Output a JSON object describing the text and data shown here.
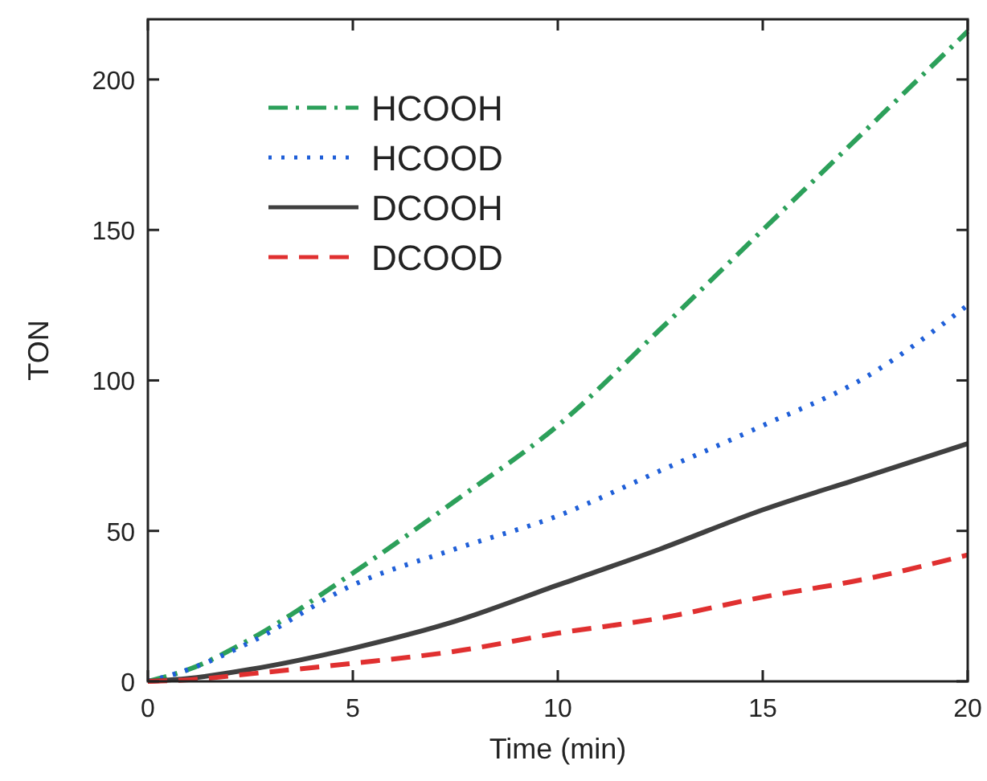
{
  "chart_data": {
    "type": "line",
    "xlabel": "Time (min)",
    "ylabel": "TON",
    "x": [
      0,
      1,
      2.5,
      5,
      7.5,
      10,
      12.5,
      15,
      17.5,
      20
    ],
    "xlim": [
      0,
      20
    ],
    "ylim": [
      0,
      220
    ],
    "xticks": [
      0,
      5,
      10,
      15,
      20
    ],
    "yticks": [
      0,
      50,
      100,
      150,
      200
    ],
    "legend": "top left",
    "grid": false,
    "series": [
      {
        "name": "HCOOH",
        "color": "#2ca05a",
        "line_style": "dashdot",
        "values": [
          0,
          4,
          14,
          36,
          60,
          85,
          117,
          150,
          183,
          216
        ]
      },
      {
        "name": "HCOOD",
        "color": "#1f5fd8",
        "line_style": "dotted",
        "values": [
          0,
          4,
          13,
          32,
          44,
          55,
          70,
          85,
          101,
          125
        ]
      },
      {
        "name": "DCOOH",
        "color": "#404040",
        "line_style": "solid",
        "values": [
          0,
          1,
          4,
          11,
          20,
          32,
          44,
          57,
          68,
          79
        ]
      },
      {
        "name": "DCOOD",
        "color": "#e03030",
        "line_style": "dashed",
        "values": [
          0,
          0.5,
          2.5,
          6,
          10,
          16,
          21,
          28,
          34,
          42
        ]
      }
    ]
  }
}
